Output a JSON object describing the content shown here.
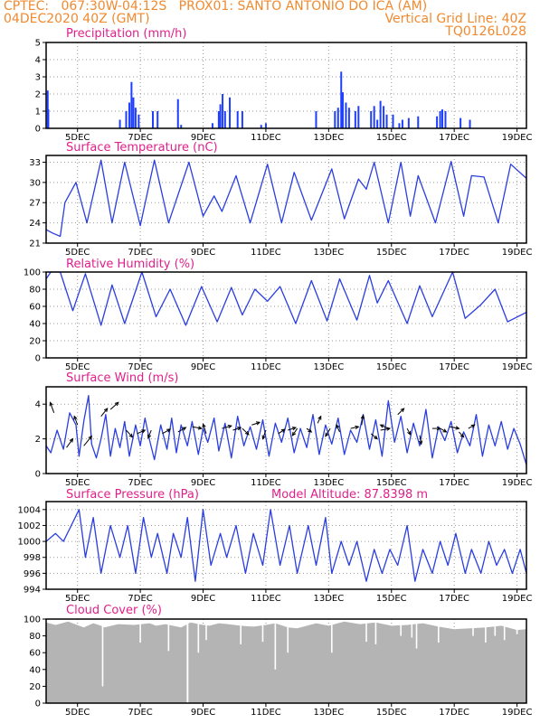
{
  "header": {
    "line1_left": "CPTEC:   067:30W-04:12S   PROX01: SANTO ANTONIO DO ICA (AM)",
    "line2_left": "04DEC2020 40Z (GMT)",
    "line2_right": "Vertical Grid Line: 40Z",
    "line3_right": "TQ0126L028"
  },
  "colors": {
    "header": "#f08a30",
    "title": "#e0208a",
    "line": "#2a3ee0",
    "bar": "#1f3fff",
    "cloud": "#b4b4b4",
    "grid": "#9a9a9a"
  },
  "x_ticks": [
    "5DEC",
    "7DEC",
    "9DEC",
    "11DEC",
    "13DEC",
    "15DEC",
    "17DEC",
    "19DEC"
  ],
  "chart_data": [
    {
      "type": "bar",
      "title": "Precipitation (mm/h)",
      "ylim": [
        0,
        5
      ],
      "yticks": [
        0,
        1,
        2,
        3,
        4,
        5
      ],
      "bars": [
        [
          0.05,
          2.2
        ],
        [
          0.07,
          1.1
        ],
        [
          2.35,
          0.5
        ],
        [
          2.55,
          1.0
        ],
        [
          2.65,
          1.5
        ],
        [
          2.72,
          2.7
        ],
        [
          2.78,
          1.8
        ],
        [
          2.85,
          1.2
        ],
        [
          2.95,
          0.8
        ],
        [
          3.4,
          1.0
        ],
        [
          3.55,
          1.0
        ],
        [
          4.2,
          1.7
        ],
        [
          4.3,
          0.2
        ],
        [
          5.3,
          0.3
        ],
        [
          5.5,
          1.0
        ],
        [
          5.55,
          1.4
        ],
        [
          5.62,
          2.0
        ],
        [
          5.7,
          1.0
        ],
        [
          5.85,
          1.8
        ],
        [
          6.1,
          1.0
        ],
        [
          6.25,
          1.0
        ],
        [
          6.85,
          0.2
        ],
        [
          7.0,
          0.3
        ],
        [
          8.6,
          1.0
        ],
        [
          9.2,
          1.0
        ],
        [
          9.3,
          1.2
        ],
        [
          9.4,
          3.3
        ],
        [
          9.45,
          2.1
        ],
        [
          9.55,
          1.5
        ],
        [
          9.65,
          1.2
        ],
        [
          9.85,
          1.0
        ],
        [
          9.95,
          1.3
        ],
        [
          10.35,
          1.0
        ],
        [
          10.45,
          1.3
        ],
        [
          10.55,
          0.5
        ],
        [
          10.65,
          1.6
        ],
        [
          10.75,
          1.3
        ],
        [
          10.85,
          0.8
        ],
        [
          11.05,
          0.8
        ],
        [
          11.25,
          0.3
        ],
        [
          11.35,
          0.5
        ],
        [
          11.55,
          0.6
        ],
        [
          11.85,
          0.7
        ],
        [
          12.45,
          0.7
        ],
        [
          12.55,
          1.0
        ],
        [
          12.62,
          1.1
        ],
        [
          12.72,
          1.0
        ],
        [
          13.2,
          0.6
        ],
        [
          13.5,
          0.5
        ]
      ]
    },
    {
      "type": "line",
      "title": "Surface Temperature (nC)",
      "ylim": [
        21,
        34
      ],
      "yticks": [
        21,
        24,
        27,
        30,
        33
      ],
      "x": [
        0,
        0.2,
        0.45,
        0.6,
        0.95,
        1.3,
        1.75,
        2.1,
        2.5,
        3.0,
        3.45,
        3.9,
        4.55,
        5.0,
        5.35,
        5.6,
        6.05,
        6.5,
        7.05,
        7.5,
        7.9,
        8.45,
        9.1,
        9.5,
        9.95,
        10.2,
        10.45,
        10.9,
        11.3,
        11.6,
        11.85,
        12.4,
        12.9,
        13.3,
        13.55,
        13.95,
        14.2,
        14.4,
        14.8,
        15.3
      ],
      "y": [
        23.0,
        22.5,
        22.0,
        27.0,
        30.0,
        24.0,
        33.3,
        24.0,
        33.0,
        23.6,
        33.3,
        24.0,
        33.0,
        25.0,
        28.0,
        25.7,
        31.0,
        24.0,
        32.7,
        24.0,
        31.5,
        24.4,
        32.0,
        24.6,
        30.5,
        29.0,
        33.0,
        24.0,
        33.0,
        25.0,
        31.0,
        24.0,
        33.1,
        25.0,
        31.0,
        30.8,
        27.0,
        24.0,
        32.7,
        30.6
      ]
    },
    {
      "type": "line",
      "title": "Relative Humidity (%)",
      "ylim": [
        0,
        100
      ],
      "yticks": [
        0,
        20,
        40,
        60,
        80,
        100
      ],
      "x": [
        0,
        0.15,
        0.45,
        0.85,
        1.25,
        1.75,
        2.1,
        2.5,
        3.05,
        3.5,
        3.95,
        4.45,
        4.95,
        5.45,
        5.9,
        6.25,
        6.65,
        7.05,
        7.45,
        7.95,
        8.45,
        8.95,
        9.35,
        9.9,
        10.3,
        10.55,
        10.9,
        11.5,
        11.9,
        12.3,
        12.95,
        13.35,
        13.85,
        14.3,
        14.7,
        15.3
      ],
      "y": [
        92,
        100,
        100,
        55,
        98,
        38,
        85,
        40,
        100,
        48,
        80,
        38,
        83,
        42,
        82,
        50,
        80,
        66,
        83,
        40,
        90,
        43,
        92,
        44,
        96,
        64,
        90,
        40,
        84,
        48,
        100,
        46,
        62,
        80,
        42,
        53
      ]
    },
    {
      "type": "line",
      "title": "Surface Wind (m/s)",
      "ylim": [
        0,
        5
      ],
      "yticks": [
        0,
        2,
        4
      ],
      "x": [
        0,
        0.15,
        0.35,
        0.55,
        0.75,
        0.95,
        1.05,
        1.2,
        1.35,
        1.45,
        1.6,
        1.75,
        1.9,
        2.05,
        2.2,
        2.35,
        2.5,
        2.65,
        2.85,
        3.0,
        3.15,
        3.3,
        3.45,
        3.65,
        3.85,
        4.0,
        4.15,
        4.3,
        4.5,
        4.65,
        4.85,
        5.0,
        5.15,
        5.35,
        5.5,
        5.7,
        5.9,
        6.1,
        6.3,
        6.5,
        6.7,
        6.9,
        7.1,
        7.3,
        7.5,
        7.7,
        7.9,
        8.1,
        8.3,
        8.5,
        8.7,
        8.9,
        9.1,
        9.3,
        9.5,
        9.7,
        9.9,
        10.1,
        10.3,
        10.5,
        10.7,
        10.9,
        11.1,
        11.3,
        11.5,
        11.7,
        11.9,
        12.1,
        12.3,
        12.5,
        12.7,
        12.9,
        13.1,
        13.3,
        13.5,
        13.7,
        13.9,
        14.1,
        14.3,
        14.5,
        14.7,
        14.9,
        15.1,
        15.3
      ],
      "y": [
        1.6,
        1.2,
        2.5,
        1.4,
        3.5,
        2.8,
        1.0,
        3.0,
        4.5,
        1.7,
        0.9,
        2.0,
        3.4,
        1.0,
        2.6,
        1.5,
        3.0,
        1.0,
        2.8,
        1.6,
        3.2,
        1.9,
        0.8,
        2.8,
        1.4,
        3.2,
        1.2,
        2.8,
        1.6,
        3.0,
        1.1,
        2.6,
        1.8,
        3.2,
        1.3,
        2.9,
        0.9,
        3.3,
        1.6,
        2.7,
        1.4,
        3.1,
        1.0,
        2.9,
        1.8,
        3.2,
        1.2,
        2.6,
        1.5,
        3.4,
        1.1,
        2.8,
        1.7,
        3.2,
        1.1,
        2.5,
        1.8,
        3.4,
        1.4,
        3.1,
        1.0,
        4.2,
        1.8,
        3.3,
        1.2,
        2.9,
        1.6,
        3.7,
        0.9,
        2.7,
        1.9,
        3.0,
        1.2,
        2.4,
        1.6,
        3.4,
        1.0,
        2.8,
        1.6,
        3.0,
        1.4,
        2.6,
        1.7,
        0.5
      ],
      "arrows": [
        [
          0.25,
          3.5,
          -0.12,
          0.6
        ],
        [
          0.65,
          1.5,
          0.2,
          0.5
        ],
        [
          1.0,
          2.8,
          -0.1,
          0.5
        ],
        [
          1.2,
          1.6,
          0.25,
          0.55
        ],
        [
          1.75,
          3.3,
          0.2,
          0.45
        ],
        [
          2.05,
          3.7,
          0.25,
          0.4
        ],
        [
          2.55,
          2.5,
          0.2,
          -0.4
        ],
        [
          2.9,
          2.3,
          0.25,
          0.2
        ],
        [
          3.35,
          2.5,
          -0.1,
          -0.45
        ],
        [
          3.7,
          2.3,
          0.25,
          0.25
        ],
        [
          4.2,
          2.4,
          0.25,
          0.25
        ],
        [
          4.65,
          2.7,
          0.3,
          -0.1
        ],
        [
          5.1,
          2.3,
          -0.1,
          0.55
        ],
        [
          5.6,
          2.6,
          0.3,
          0.15
        ],
        [
          5.95,
          2.5,
          0.25,
          0.15
        ],
        [
          6.25,
          2.6,
          0.2,
          -0.35
        ],
        [
          6.55,
          2.8,
          0.25,
          0.15
        ],
        [
          7.0,
          2.5,
          -0.1,
          -0.5
        ],
        [
          7.4,
          2.3,
          0.2,
          0.25
        ],
        [
          7.7,
          2.5,
          0.25,
          0.15
        ],
        [
          8.0,
          2.6,
          -0.15,
          -0.4
        ],
        [
          8.3,
          2.6,
          0.15,
          -0.2
        ],
        [
          8.65,
          2.9,
          0.1,
          0.4
        ],
        [
          9.05,
          2.6,
          -0.15,
          -0.45
        ],
        [
          9.35,
          2.4,
          -0.1,
          0.4
        ],
        [
          9.7,
          2.6,
          0.25,
          0.1
        ],
        [
          10.05,
          2.8,
          0.05,
          0.55
        ],
        [
          10.35,
          2.3,
          0.2,
          -0.3
        ],
        [
          10.65,
          2.5,
          0.3,
          0.1
        ],
        [
          10.9,
          2.6,
          -0.25,
          0.2
        ],
        [
          11.2,
          3.4,
          0.2,
          0.35
        ],
        [
          11.5,
          2.6,
          0.1,
          -0.35
        ],
        [
          11.9,
          2.2,
          0.05,
          -0.5
        ],
        [
          12.3,
          2.6,
          0.25,
          0.0
        ],
        [
          12.55,
          2.6,
          0.2,
          -0.2
        ],
        [
          12.85,
          2.7,
          0.3,
          -0.1
        ],
        [
          13.15,
          2.4,
          0.15,
          -0.3
        ],
        [
          13.45,
          2.6,
          0.2,
          0.2
        ]
      ]
    },
    {
      "type": "line",
      "title": "Surface Pressure (hPa)",
      "annotation": "Model Altitude: 87.8398 m",
      "ylim": [
        994,
        1005
      ],
      "yticks": [
        994,
        996,
        998,
        1000,
        1002,
        1004
      ],
      "x": [
        0,
        0.3,
        0.55,
        0.8,
        1.05,
        1.25,
        1.5,
        1.75,
        2.05,
        2.35,
        2.6,
        2.85,
        3.1,
        3.35,
        3.55,
        3.85,
        4.05,
        4.3,
        4.5,
        4.75,
        5.0,
        5.25,
        5.55,
        5.75,
        6.05,
        6.35,
        6.6,
        6.9,
        7.15,
        7.45,
        7.75,
        8.0,
        8.35,
        8.6,
        8.9,
        9.1,
        9.4,
        9.65,
        9.9,
        10.2,
        10.45,
        10.7,
        10.95,
        11.2,
        11.5,
        11.75,
        12.0,
        12.3,
        12.55,
        12.8,
        13.05,
        13.35,
        13.55,
        13.85,
        14.1,
        14.35,
        14.6,
        14.85,
        15.1,
        15.3
      ],
      "y": [
        1000,
        1001,
        1000,
        1002,
        1004,
        998,
        1003,
        996,
        1002,
        998,
        1002,
        996,
        1003,
        998,
        1001,
        996,
        1001,
        998,
        1003,
        995,
        1004,
        997,
        1001,
        998,
        1002,
        996,
        1001,
        997,
        1004,
        997,
        1002,
        996,
        1002,
        997,
        1003,
        996,
        1000,
        997,
        1000,
        995,
        999,
        996,
        999,
        997,
        1002,
        995,
        999,
        996,
        1000,
        997,
        1001,
        996,
        999,
        996,
        1000,
        997,
        999,
        996,
        999,
        996
      ]
    },
    {
      "type": "bar",
      "title": "Cloud Cover (%)",
      "ylim": [
        0,
        100
      ],
      "yticks": [
        0,
        20,
        40,
        60,
        80,
        100
      ],
      "profile_x": [
        0,
        0.3,
        0.7,
        1.2,
        1.5,
        1.75,
        1.85,
        2.3,
        2.8,
        3.3,
        3.5,
        3.8,
        4.3,
        4.6,
        5.0,
        5.2,
        5.5,
        5.8,
        6.2,
        6.6,
        7.0,
        7.3,
        7.7,
        8.0,
        8.6,
        9.0,
        9.5,
        10.0,
        10.5,
        11.0,
        11.5,
        12.0,
        12.5,
        13.0,
        13.5,
        14.0,
        14.5,
        15.0,
        15.3
      ],
      "profile_y": [
        96,
        93,
        97,
        90,
        95,
        92,
        90,
        94,
        93,
        95,
        92,
        94,
        90,
        96,
        93,
        92,
        95,
        94,
        92,
        91,
        93,
        95,
        90,
        89,
        95,
        92,
        97,
        94,
        96,
        92,
        93,
        95,
        91,
        88,
        89,
        90,
        92,
        87,
        88
      ],
      "dips": [
        [
          1.8,
          20
        ],
        [
          3.0,
          72
        ],
        [
          3.9,
          62
        ],
        [
          4.5,
          0
        ],
        [
          4.85,
          60
        ],
        [
          5.1,
          75
        ],
        [
          6.2,
          70
        ],
        [
          6.9,
          73
        ],
        [
          7.3,
          40
        ],
        [
          7.7,
          60
        ],
        [
          9.1,
          60
        ],
        [
          10.2,
          73
        ],
        [
          10.5,
          70
        ],
        [
          11.3,
          80
        ],
        [
          11.65,
          78
        ],
        [
          11.8,
          65
        ],
        [
          12.5,
          72
        ],
        [
          13.6,
          80
        ],
        [
          14.0,
          72
        ],
        [
          14.3,
          80
        ],
        [
          14.6,
          75
        ],
        [
          15.0,
          82
        ]
      ],
      "spikes": [
        4.51
      ]
    }
  ]
}
